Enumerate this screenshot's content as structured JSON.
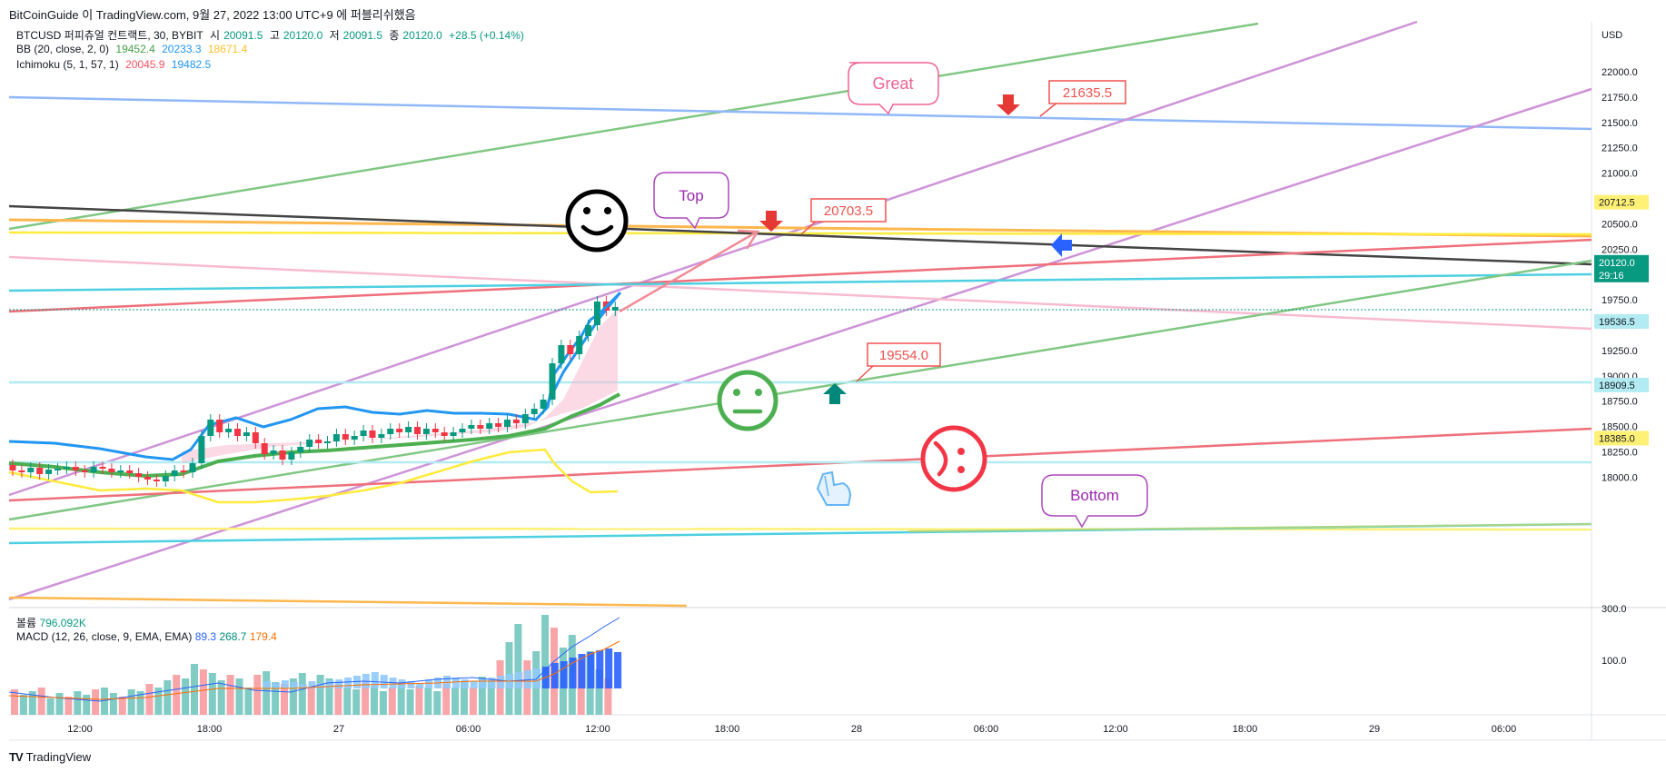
{
  "header": {
    "publish_line": "BitCoinGuide 이 TradingView.com, 9월 27, 2022 13:00 UTC+9 에 퍼블리쉬했음"
  },
  "symbol_legend": {
    "name": "BTCUSD 퍼피츄얼 컨트랙트, 30, BYBIT",
    "open_label": "시",
    "open": "20091.5",
    "high_label": "고",
    "high": "20120.0",
    "low_label": "저",
    "low": "20091.5",
    "close_label": "종",
    "close": "20120.0",
    "change": "+28.5 (+0.14%)"
  },
  "bb_legend": {
    "name": "BB (20, close, 2, 0)",
    "v1": "19452.4",
    "v2": "20233.3",
    "v3": "18671.4"
  },
  "ichimoku_legend": {
    "name": "Ichimoku (5, 1, 57, 1)",
    "v1": "20045.9",
    "v2": "19482.5"
  },
  "volume_legend": {
    "name": "볼륨",
    "value": "796.092K"
  },
  "macd_legend": {
    "name": "MACD (12, 26, close, 9, EMA, EMA)",
    "v1": "89.3",
    "v2": "268.7",
    "v3": "179.4"
  },
  "price_axis": {
    "currency": "USD",
    "ticks": [
      "22000.0",
      "21750.0",
      "21500.0",
      "21250.0",
      "21000.0",
      "20750.0",
      "20500.0",
      "20250.0",
      "20000.0",
      "19750.0",
      "19500.0",
      "19250.0",
      "19000.0",
      "18750.0",
      "18500.0",
      "18250.0",
      "18000.0"
    ],
    "labels": [
      {
        "text": "20712.5",
        "color": "#fff176"
      },
      {
        "text": "20120.0",
        "sub": "29:16",
        "color": "#089981"
      },
      {
        "text": "19536.5",
        "color": "#b2ebf2"
      },
      {
        "text": "18909.5",
        "color": "#b2ebf2"
      },
      {
        "text": "18385.0",
        "color": "#fff176"
      }
    ]
  },
  "volume_axis": {
    "ticks": [
      "300.0",
      "100.0"
    ]
  },
  "time_axis": {
    "ticks": [
      "12:00",
      "18:00",
      "27",
      "06:00",
      "12:00",
      "18:00",
      "28",
      "06:00",
      "12:00",
      "18:00",
      "29",
      "06:00"
    ]
  },
  "annotations": {
    "bubbles": [
      "Great",
      "Top",
      "Bottom"
    ],
    "price_labels": [
      "21635.5",
      "20703.5",
      "19554.0"
    ]
  },
  "icons": [
    "smiley-happy-icon",
    "smiley-neutral-icon",
    "smiley-confused-icon",
    "pointing-hand-icon",
    "arrow-down-icon",
    "arrow-up-icon",
    "arrow-left-icon"
  ],
  "footer": {
    "brand": "TradingView",
    "logo": "TV"
  },
  "colors": {
    "up": "#089981",
    "down": "#f23645",
    "bb_upper": "#2196f3",
    "bb_mid": "#43a047",
    "bb_lower": "#ffeb3b"
  }
}
